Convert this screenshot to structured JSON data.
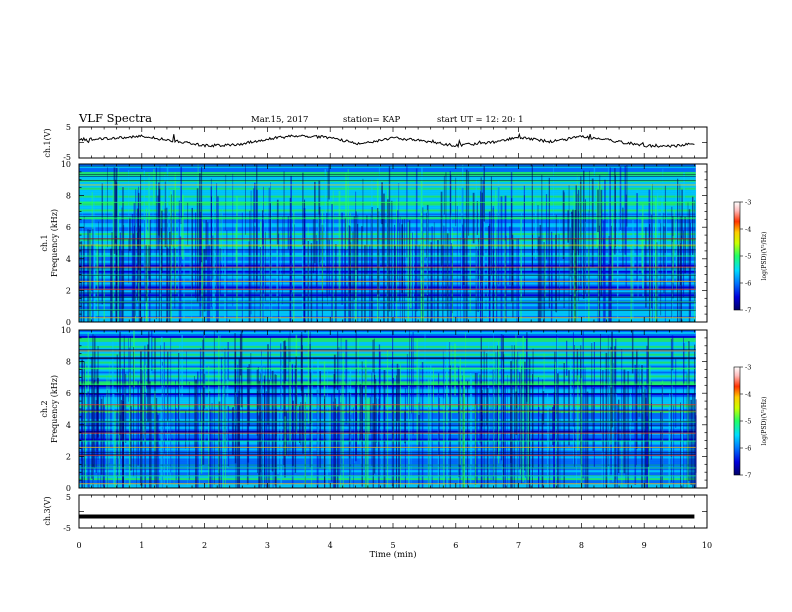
{
  "header": {
    "title": "VLF Spectra",
    "date": "Mar.15, 2017",
    "station": "station= KAP",
    "start_time": "start  UT  =   12: 20: 1"
  },
  "chart_data": [
    {
      "type": "line",
      "name": "ch1-waveform-panel",
      "ylabel": "ch.1(V)",
      "ylim": [
        -5,
        5
      ],
      "y_ticks": [
        "5",
        "-5"
      ],
      "xlim": [
        0,
        10
      ],
      "x": [
        0,
        0.5,
        1,
        1.5,
        2,
        2.5,
        3,
        3.5,
        4,
        4.5,
        5,
        5.5,
        6,
        6.5,
        7,
        7.5,
        8,
        8.5,
        9,
        9.5,
        9.8
      ],
      "values": [
        1.0,
        1.3,
        2.0,
        0.6,
        -1.0,
        -0.8,
        1.2,
        2.2,
        1.6,
        -0.6,
        1.6,
        0.4,
        -1.0,
        -0.2,
        1.6,
        0.3,
        1.8,
        0.6,
        -1.0,
        -1.1,
        -0.2
      ]
    },
    {
      "type": "heatmap",
      "name": "ch1-spectrogram",
      "ylabel": "ch.1\nFrequency (kHz)",
      "ylim": [
        0,
        10
      ],
      "y_ticks": [
        "0",
        "2",
        "4",
        "6",
        "8",
        "10"
      ],
      "xlim": [
        0,
        10
      ],
      "colorbar": {
        "label": "log(PSD)(V²/Hz)",
        "range": [
          -7,
          -3
        ],
        "ticks": [
          "-3",
          "-4",
          "-5",
          "-6",
          "-7"
        ]
      }
    },
    {
      "type": "heatmap",
      "name": "ch2-spectrogram",
      "ylabel": "ch.2\nFrequency (kHz)",
      "ylim": [
        0,
        10
      ],
      "y_ticks": [
        "0",
        "2",
        "4",
        "6",
        "8",
        "10"
      ],
      "xlim": [
        0,
        10
      ],
      "colorbar": {
        "label": "log(PSD)(V²/Hz)",
        "range": [
          -7,
          -3
        ],
        "ticks": [
          "-3",
          "-4",
          "-5",
          "-6",
          "-7"
        ]
      }
    },
    {
      "type": "line",
      "name": "ch3-waveform-panel",
      "ylabel": "ch.3(V)",
      "ylim": [
        -5,
        5
      ],
      "y_ticks": [
        "5",
        "-5"
      ],
      "xlim": [
        0,
        10
      ],
      "x": [
        0,
        9.8
      ],
      "values": [
        -1.5,
        -1.5
      ]
    }
  ],
  "x_axis": {
    "label": "Time  (min)",
    "ticks": [
      "0",
      "1",
      "2",
      "3",
      "4",
      "5",
      "6",
      "7",
      "8",
      "9",
      "10"
    ]
  },
  "colors": {
    "colorbar_stops": [
      "#000066",
      "#0000dd",
      "#0077ff",
      "#00ddff",
      "#22ff66",
      "#ccff00",
      "#ffcc00",
      "#ff3300",
      "#ffbbbb",
      "#ffffff"
    ],
    "trace": "#000000"
  }
}
